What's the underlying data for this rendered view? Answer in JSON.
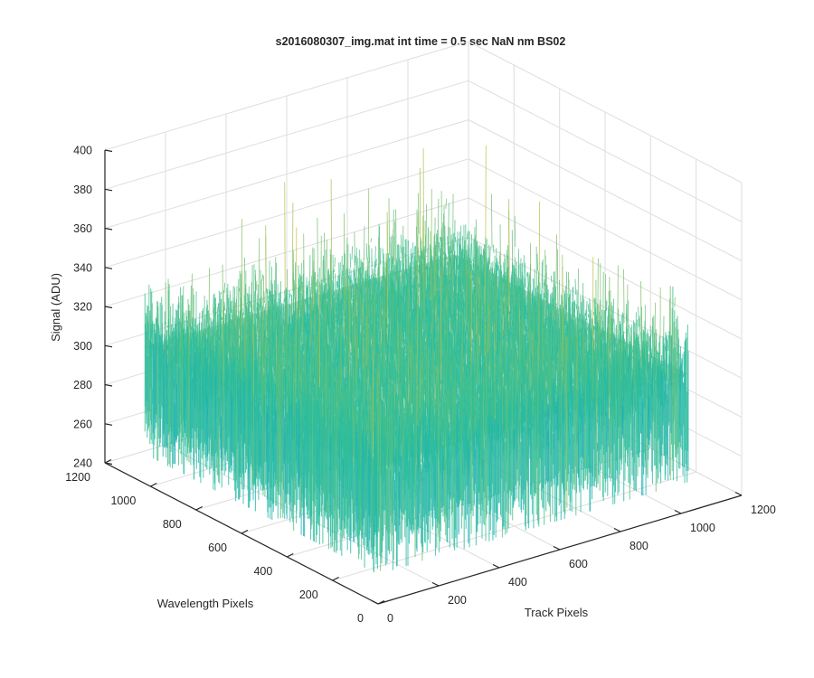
{
  "chart_data": {
    "type": "surface",
    "title": "s2016080307_img.mat int time = 0.5 sec  NaN nm BS02",
    "xlabel": "Track Pixels",
    "ylabel": "Wavelength Pixels",
    "zlabel": "Signal (ADU)",
    "xlim": [
      0,
      1200
    ],
    "ylim": [
      0,
      1200
    ],
    "zlim": [
      240,
      400
    ],
    "x_ticks": [
      "0",
      "200",
      "400",
      "600",
      "800",
      "1000",
      "1200"
    ],
    "y_ticks": [
      "0",
      "200",
      "400",
      "600",
      "800",
      "1000",
      "1200"
    ],
    "z_ticks": [
      "240",
      "260",
      "280",
      "300",
      "320",
      "340",
      "360",
      "380",
      "400"
    ],
    "grid": true,
    "colormap": "parula",
    "surface": {
      "x_extent": [
        0,
        1024
      ],
      "y_extent": [
        0,
        1024
      ],
      "mean": 310,
      "noise_low": 255,
      "noise_high": 385
    },
    "colors": {
      "low": "#0a9fd6",
      "mid": "#2cbf9b",
      "high": "#d7c23a"
    }
  }
}
